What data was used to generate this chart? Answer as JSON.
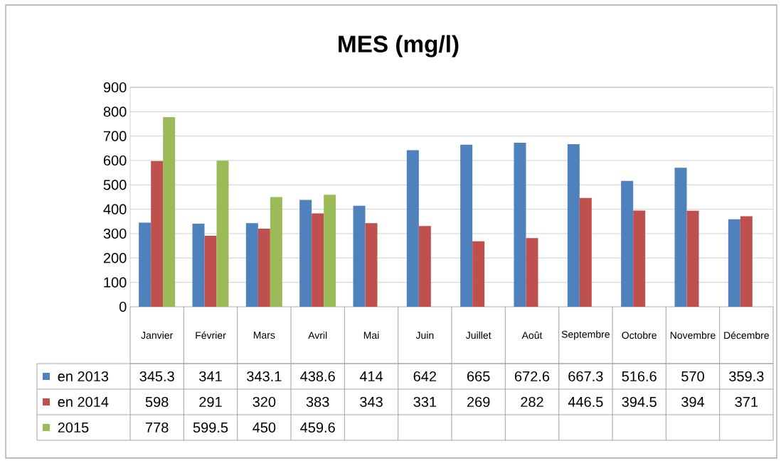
{
  "chart_data": {
    "type": "bar",
    "title": "MES (mg/l)",
    "categories": [
      "Janvier",
      "Février",
      "Mars",
      "Avril",
      "Mai",
      "Juin",
      "Juillet",
      "Août",
      "Septembre",
      "Octobre",
      "Novembre",
      "Décembre"
    ],
    "series": [
      {
        "name": "en 2013",
        "color": "#4f81bd",
        "values": [
          345.3,
          341,
          343.1,
          438.6,
          414,
          642,
          665,
          672.6,
          667.3,
          516.6,
          570,
          359.3
        ]
      },
      {
        "name": "en 2014",
        "color": "#c0504d",
        "values": [
          598,
          291,
          320,
          383,
          343,
          331,
          269,
          282,
          446.5,
          394.5,
          394,
          371
        ]
      },
      {
        "name": "2015",
        "color": "#9bbb59",
        "values": [
          778,
          599.5,
          450,
          459.6,
          null,
          null,
          null,
          null,
          null,
          null,
          null,
          null
        ]
      }
    ],
    "ylim": [
      0,
      900
    ],
    "yticks": [
      0,
      100,
      200,
      300,
      400,
      500,
      600,
      700,
      800,
      900
    ],
    "grid": "y",
    "legend": "bottom",
    "data_labels": true
  }
}
